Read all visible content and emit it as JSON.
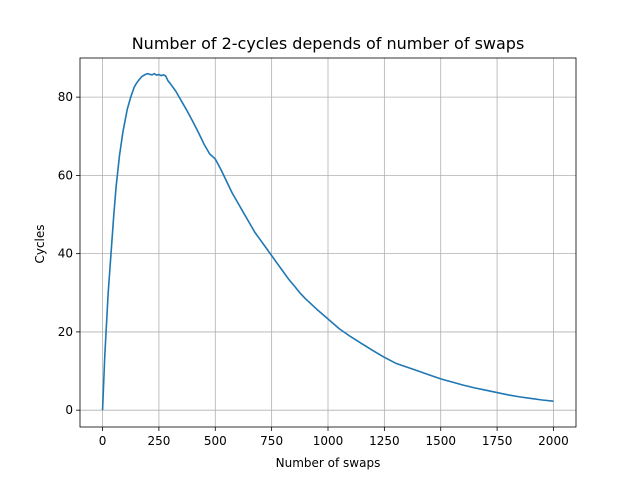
{
  "chart_data": {
    "type": "line",
    "title": "Number of 2-cycles depends of number of swaps",
    "xlabel": "Number of swaps",
    "ylabel": "Cycles",
    "xlim": [
      -100,
      2100
    ],
    "ylim": [
      -4.3,
      90
    ],
    "xticks": [
      0,
      250,
      500,
      750,
      1000,
      1250,
      1500,
      1750,
      2000
    ],
    "yticks": [
      0,
      20,
      40,
      60,
      80
    ],
    "grid": true,
    "line_color": "#1f77b4",
    "series": [
      {
        "x": [
          0,
          10,
          25,
          40,
          50,
          60,
          75,
          90,
          100,
          110,
          125,
          140,
          150,
          160,
          175,
          190,
          200,
          210,
          220,
          230,
          240,
          250,
          260,
          270,
          280,
          290,
          300,
          325,
          350,
          375,
          400,
          425,
          450,
          475,
          500,
          525,
          550,
          575,
          600,
          625,
          650,
          675,
          700,
          725,
          750,
          775,
          800,
          825,
          850,
          875,
          900,
          950,
          1000,
          1050,
          1100,
          1150,
          1200,
          1250,
          1300,
          1350,
          1400,
          1450,
          1500,
          1550,
          1600,
          1650,
          1700,
          1750,
          1800,
          1850,
          1900,
          1950,
          2000
        ],
        "y": [
          0,
          14,
          30,
          42,
          50,
          57,
          65,
          71,
          74,
          77,
          80,
          82.5,
          83.5,
          84.3,
          85.3,
          85.8,
          86,
          85.8,
          85.7,
          86,
          85.6,
          85.8,
          85.5,
          85.7,
          85.4,
          84.2,
          83.5,
          81.5,
          79,
          76.5,
          73.8,
          71,
          68,
          65.5,
          64.2,
          61.5,
          58.5,
          55.5,
          53,
          50.5,
          48,
          45.5,
          43.5,
          41.5,
          39.5,
          37.5,
          35.5,
          33.5,
          31.8,
          30,
          28.5,
          25.8,
          23.3,
          20.8,
          18.8,
          17,
          15.2,
          13.5,
          12,
          11,
          10,
          9,
          8,
          7.2,
          6.4,
          5.7,
          5.1,
          4.5,
          3.9,
          3.4,
          3,
          2.6,
          2.3
        ]
      }
    ]
  }
}
